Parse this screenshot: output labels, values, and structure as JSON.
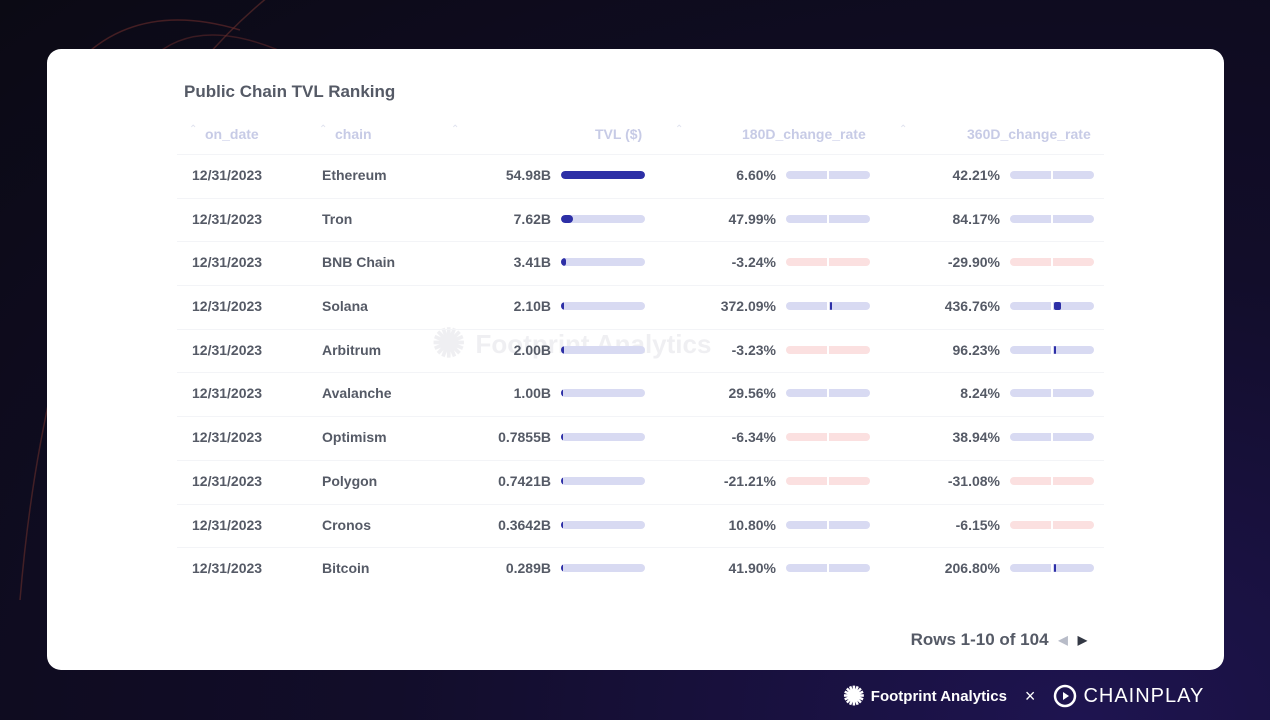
{
  "title": "Public Chain TVL Ranking",
  "columns": [
    "on_date",
    "chain",
    "TVL ($)",
    "180D_change_rate",
    "360D_change_rate"
  ],
  "chart_data": {
    "type": "table",
    "title": "Public Chain TVL Ranking",
    "columns": [
      "on_date",
      "chain",
      "TVL ($)",
      "180D_change_rate",
      "360D_change_rate"
    ],
    "rows": [
      {
        "on_date": "12/31/2023",
        "chain": "Ethereum",
        "tvl": "54.98B",
        "tvl_value": 54.98,
        "c180": "6.60%",
        "c180_value": 6.6,
        "c360": "42.21%",
        "c360_value": 42.21
      },
      {
        "on_date": "12/31/2023",
        "chain": "Tron",
        "tvl": "7.62B",
        "tvl_value": 7.62,
        "c180": "47.99%",
        "c180_value": 47.99,
        "c360": "84.17%",
        "c360_value": 84.17
      },
      {
        "on_date": "12/31/2023",
        "chain": "BNB Chain",
        "tvl": "3.41B",
        "tvl_value": 3.41,
        "c180": "-3.24%",
        "c180_value": -3.24,
        "c360": "-29.90%",
        "c360_value": -29.9
      },
      {
        "on_date": "12/31/2023",
        "chain": "Solana",
        "tvl": "2.10B",
        "tvl_value": 2.1,
        "c180": "372.09%",
        "c180_value": 372.09,
        "c360": "436.76%",
        "c360_value": 436.76
      },
      {
        "on_date": "12/31/2023",
        "chain": "Arbitrum",
        "tvl": "2.00B",
        "tvl_value": 2.0,
        "c180": "-3.23%",
        "c180_value": -3.23,
        "c360": "96.23%",
        "c360_value": 96.23
      },
      {
        "on_date": "12/31/2023",
        "chain": "Avalanche",
        "tvl": "1.00B",
        "tvl_value": 1.0,
        "c180": "29.56%",
        "c180_value": 29.56,
        "c360": "8.24%",
        "c360_value": 8.24
      },
      {
        "on_date": "12/31/2023",
        "chain": "Optimism",
        "tvl": "0.7855B",
        "tvl_value": 0.7855,
        "c180": "-6.34%",
        "c180_value": -6.34,
        "c360": "38.94%",
        "c360_value": 38.94
      },
      {
        "on_date": "12/31/2023",
        "chain": "Polygon",
        "tvl": "0.7421B",
        "tvl_value": 0.7421,
        "c180": "-21.21%",
        "c180_value": -21.21,
        "c360": "-31.08%",
        "c360_value": -31.08
      },
      {
        "on_date": "12/31/2023",
        "chain": "Cronos",
        "tvl": "0.3642B",
        "tvl_value": 0.3642,
        "c180": "10.80%",
        "c180_value": 10.8,
        "c360": "-6.15%",
        "c360_value": -6.15
      },
      {
        "on_date": "12/31/2023",
        "chain": "Bitcoin",
        "tvl": "0.289B",
        "tvl_value": 0.289,
        "c180": "41.90%",
        "c180_value": 41.9,
        "c360": "206.80%",
        "c360_value": 206.8
      }
    ]
  },
  "watermark": "Footprint Analytics",
  "pagination": {
    "label": "Rows 1-10 of 104"
  },
  "footer": {
    "brand1": "Footprint Analytics",
    "separator": "×",
    "brand2": "CHAINPLAY"
  },
  "colors": {
    "bar_fill": "#2d2fa6",
    "bar_track_pos": "#d8daf2",
    "bar_track_neg": "#fbe0e0"
  },
  "icons": [
    "sort-caret-icon",
    "chevron-left-icon",
    "chevron-right-icon",
    "footprint-logo-icon",
    "chainplay-logo-icon"
  ]
}
